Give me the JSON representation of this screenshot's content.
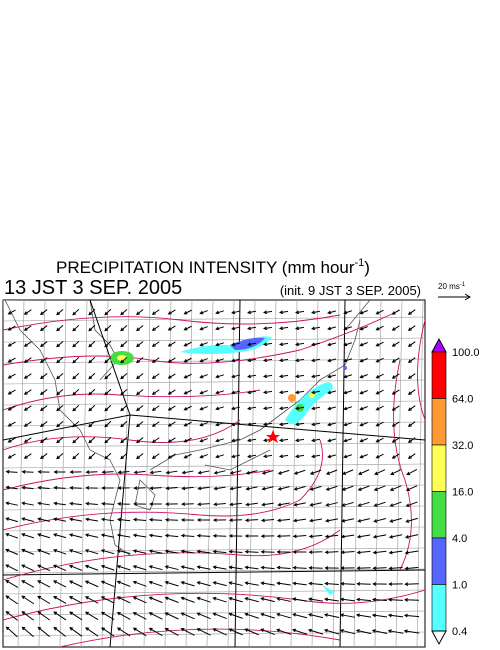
{
  "title": {
    "text": "PRECIPITATION INTENSITY (mm hour",
    "sup": "-1",
    "close": ")"
  },
  "valid_time": "13 JST 3 SEP. 2005",
  "init_time": "(init. 9 JST 3 SEP. 2005)",
  "vector_scale": {
    "text": "20 ms",
    "sup": "-1"
  },
  "colorbar": {
    "labels": [
      "100.0",
      "64.0",
      "32.0",
      "16.0",
      "4.0",
      "1.0",
      "0.4"
    ],
    "colors": [
      "#ff0000",
      "#ff9933",
      "#ffff55",
      "#44dd44",
      "#5566ff",
      "#55ffff"
    ],
    "over_color": "#aa00ff",
    "under_color": "#ffffff"
  }
}
